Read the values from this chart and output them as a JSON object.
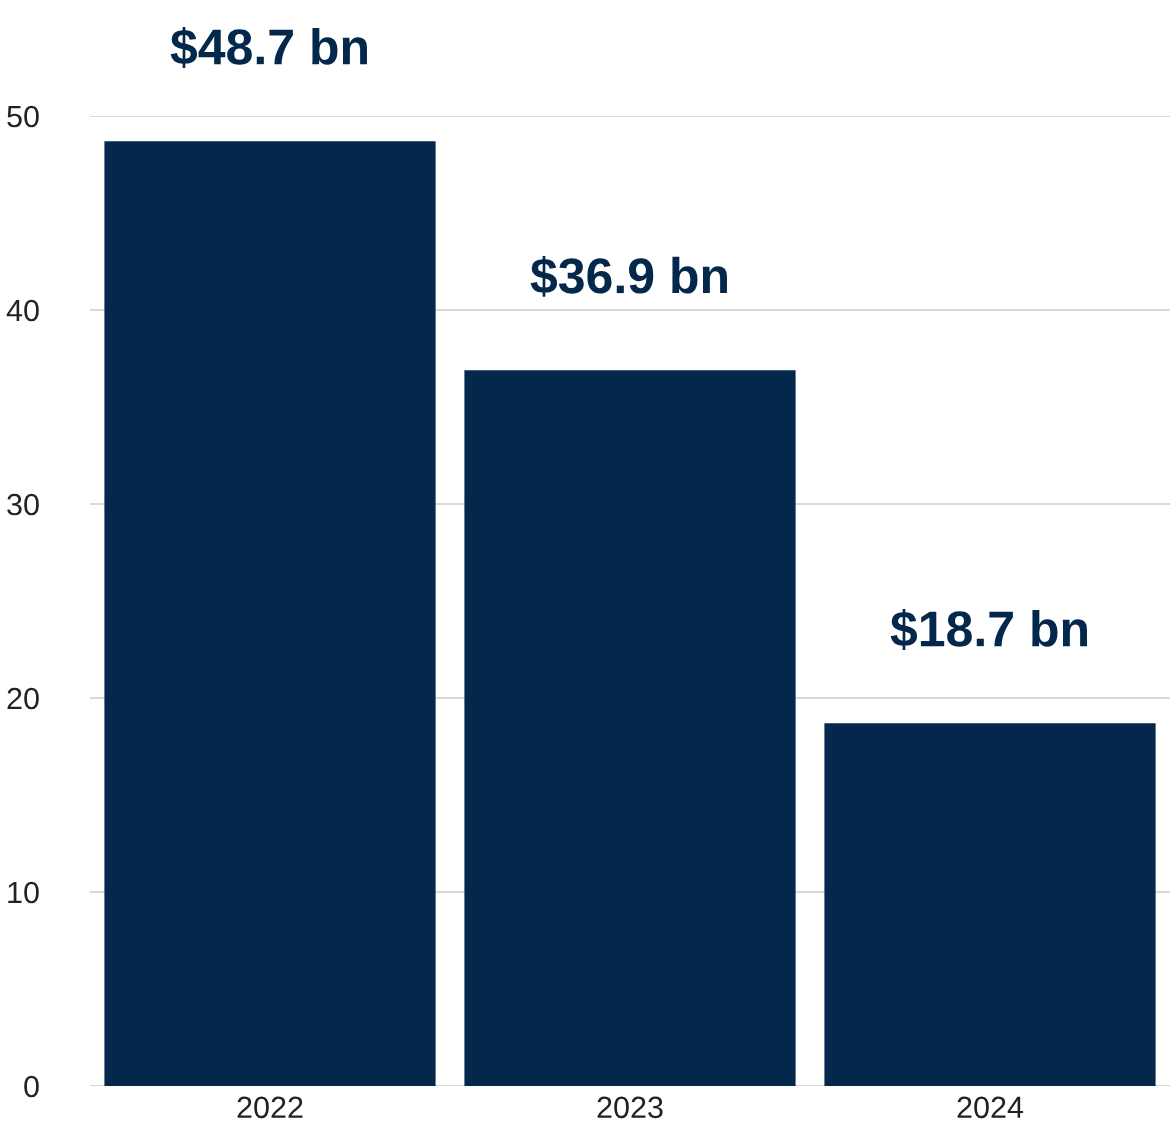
{
  "chart_data": {
    "type": "bar",
    "categories": [
      "2022",
      "2023",
      "2024"
    ],
    "values": [
      48.7,
      36.9,
      18.7
    ],
    "value_labels": [
      "$48.7 bn",
      "$36.9 bn",
      "$18.7 bn"
    ],
    "color": "#03284b",
    "ylim": [
      0,
      50
    ],
    "yticks": [
      0,
      10,
      20,
      30,
      40,
      50
    ],
    "grid": "y"
  }
}
